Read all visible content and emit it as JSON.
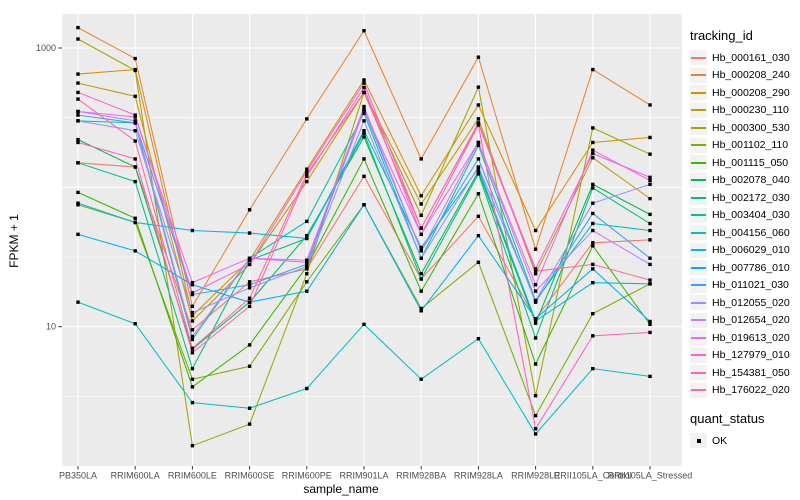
{
  "panel": {
    "background": "#EBEBEB",
    "gridline_color": "#FFFFFF",
    "tick_color": "#333333",
    "tick_label_color": "#4D4D4D"
  },
  "legend": {
    "tracking_title": "tracking_id",
    "quant_title": "quant_status",
    "quant_items": [
      {
        "label": "OK",
        "marker": "black-square"
      }
    ]
  },
  "chart_data": {
    "type": "line",
    "title": "",
    "xlabel": "sample_name",
    "ylabel": "FPKM + 1",
    "y_scale": "log10",
    "ylim": [
      1,
      1800
    ],
    "y_tick_labels": [
      {
        "value": 1000,
        "label": "1000"
      },
      {
        "value": 10,
        "label": "10"
      }
    ],
    "y_gridlines_major": [
      10,
      100,
      1000
    ],
    "y_gridlines_minor": [
      3.162,
      31.62,
      316.2
    ],
    "grid": true,
    "legend_position": "right",
    "point_shape": "black-square",
    "categories": [
      "PB350LA",
      "RRIM600LA",
      "RRIM600LE",
      "RRIM600SE",
      "RRIM600PE",
      "RRIM901LA",
      "RRIM928BA",
      "RRIM928LA",
      "RRIM928LE",
      "RRII105LA_Control",
      "RRII105LA_Stressed"
    ],
    "series": [
      {
        "name": "Hb_000161_030",
        "color": "#F8766D",
        "values": [
          150,
          140,
          9.5,
          21,
          26,
          120,
          22,
          62,
          11.4,
          40,
          42
        ]
      },
      {
        "name": "Hb_000208_240",
        "color": "#EA8331",
        "values": [
          1400,
          840,
          14,
          69,
          310,
          1330,
          160,
          860,
          36,
          700,
          390
        ]
      },
      {
        "name": "Hb_000208_290",
        "color": "#D89000",
        "values": [
          650,
          700,
          12,
          30,
          135,
          590,
          87,
          390,
          49,
          210,
          228
        ]
      },
      {
        "name": "Hb_000230_110",
        "color": "#C09B00",
        "values": [
          560,
          450,
          11,
          28,
          110,
          480,
          76,
          310,
          24,
          163,
          83
        ]
      },
      {
        "name": "Hb_000300_530",
        "color": "#A3A500",
        "values": [
          1160,
          690,
          1.4,
          2.0,
          24,
          480,
          63,
          524,
          3.2,
          267,
          173
        ]
      },
      {
        "name": "Hb_001102_110",
        "color": "#7CAE00",
        "values": [
          75,
          56,
          4.2,
          5.2,
          21,
          75,
          13.5,
          29,
          2.3,
          12.4,
          20.3
        ]
      },
      {
        "name": "Hb_001115_050",
        "color": "#39B600",
        "values": [
          92,
          60,
          3.7,
          7.4,
          27,
          160,
          18,
          90,
          5.4,
          38,
          10.4
        ]
      },
      {
        "name": "Hb_002078_040",
        "color": "#00BB4E",
        "values": [
          220,
          140,
          6.9,
          15,
          45,
          230,
          24,
          130,
          10.6,
          105,
          64
        ]
      },
      {
        "name": "Hb_002172_030",
        "color": "#00BF7D",
        "values": [
          150,
          110,
          5.0,
          30,
          43,
          245,
          22,
          125,
          8.3,
          99,
          55
        ]
      },
      {
        "name": "Hb_003404_030",
        "color": "#00C1A3",
        "values": [
          300,
          290,
          8.1,
          31,
          57,
          340,
          31,
          200,
          15.4,
          55,
          49
        ]
      },
      {
        "name": "Hb_004156_060",
        "color": "#00BFC4",
        "values": [
          15,
          10.5,
          2.85,
          2.6,
          3.6,
          10.4,
          4.2,
          8.2,
          1.7,
          5.0,
          4.4
        ]
      },
      {
        "name": "Hb_006029_010",
        "color": "#00BAE0",
        "values": [
          77,
          56,
          49,
          47,
          43,
          255,
          37,
          137,
          11,
          20.7,
          20.3
        ]
      },
      {
        "name": "Hb_007786_010",
        "color": "#00B0F6",
        "values": [
          46,
          35,
          20,
          15,
          18,
          75,
          13,
          45,
          11.4,
          26,
          10.9
        ]
      },
      {
        "name": "Hb_011021_030",
        "color": "#35A2FF",
        "values": [
          330,
          290,
          17,
          20,
          28,
          360,
          35,
          160,
          15,
          65,
          31
        ]
      },
      {
        "name": "Hb_012055_020",
        "color": "#9590FF",
        "values": [
          300,
          255,
          12.6,
          19,
          27,
          300,
          31,
          140,
          15.4,
          77,
          105
        ]
      },
      {
        "name": "Hb_012654_020",
        "color": "#C77CFF",
        "values": [
          350,
          300,
          8.5,
          31,
          29,
          380,
          35,
          210,
          18,
          49,
          28
        ]
      },
      {
        "name": "Hb_019613_020",
        "color": "#E76BF3",
        "values": [
          350,
          320,
          20.7,
          31,
          30,
          360,
          46,
          210,
          20,
          185,
          112
        ]
      },
      {
        "name": "Hb_127979_010",
        "color": "#FA62DB",
        "values": [
          480,
          330,
          17.5,
          28,
          130,
          560,
          51,
          290,
          26,
          175,
          118
        ]
      },
      {
        "name": "Hb_154381_050",
        "color": "#FF62BC",
        "values": [
          210,
          160,
          6.5,
          14,
          120,
          520,
          46,
          280,
          1.85,
          8.6,
          9.1
        ]
      },
      {
        "name": "Hb_176022_020",
        "color": "#FF6A98",
        "values": [
          430,
          215,
          7.0,
          16,
          125,
          480,
          51,
          285,
          25,
          28,
          21.6
        ]
      }
    ]
  }
}
